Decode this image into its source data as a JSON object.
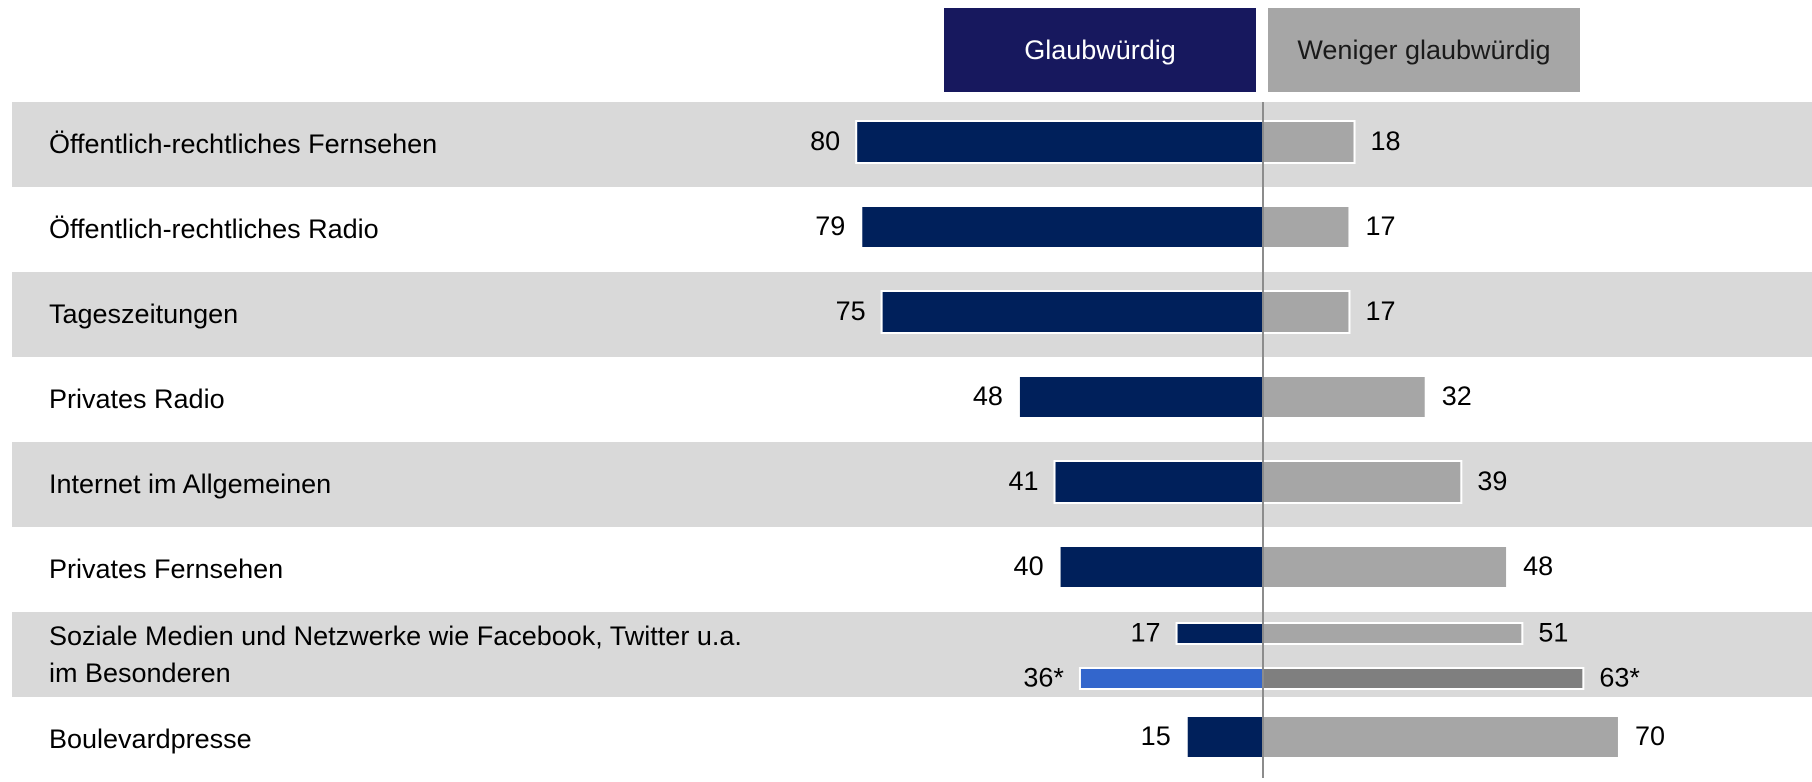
{
  "chart_data": {
    "type": "diverging-bar",
    "categories": [
      "Öffentlich-rechtliches Fernsehen",
      "Öffentlich-rechtliches Radio",
      "Tageszeitungen",
      "Privates Radio",
      "Internet im Allgemeinen",
      "Privates Fernsehen",
      "Soziale Medien und Netzwerke wie Facebook, Twitter u.a. im Besonderen",
      "Boulevardpresse"
    ],
    "series": [
      {
        "name": "Glaubwürdig",
        "color": "#00205b",
        "values": [
          80,
          79,
          75,
          48,
          41,
          40,
          17,
          15
        ]
      },
      {
        "name": "Weniger glaubwürdig",
        "color": "#a6a6a6",
        "values": [
          18,
          17,
          17,
          32,
          39,
          48,
          51,
          70
        ]
      },
      {
        "color": "#3366cc",
        "values": [
          null,
          null,
          null,
          null,
          null,
          null,
          36,
          null
        ],
        "value_labels": [
          null,
          null,
          null,
          null,
          null,
          null,
          "36*",
          null
        ]
      },
      {
        "color": "#7f7f7f",
        "values": [
          null,
          null,
          null,
          null,
          null,
          null,
          63,
          null
        ],
        "value_labels": [
          null,
          null,
          null,
          null,
          null,
          null,
          "63*",
          null
        ]
      }
    ],
    "header_colors": [
      "#17185e",
      "#a6a6a6"
    ],
    "row_colors": [
      "#d9d9d9",
      "#ffffff"
    ]
  }
}
